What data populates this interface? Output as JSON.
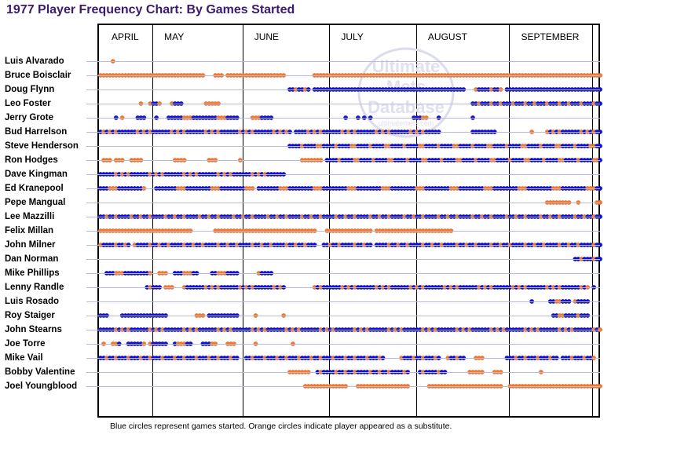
{
  "title": "1977 Player Frequency Chart: By Games Started",
  "footnote": "Blue circles represent games started. Orange circles indicate player appeared as a substitute.",
  "watermark": {
    "line1": "Ultimate",
    "line2": "Mets",
    "line3": "Database",
    "url": "ultimatemets.com"
  },
  "colors": {
    "started": "#1010d8",
    "substitute": "#f07830",
    "title": "#3b1a6e",
    "rowline": "#b8bcd8"
  },
  "chart_data": {
    "type": "scatter",
    "title": "1977 Player Frequency Chart: By Games Started",
    "x_unit": "game number in season (1-162)",
    "months": [
      {
        "label": "APRIL",
        "start_game": 1
      },
      {
        "label": "MAY",
        "start_game": 18
      },
      {
        "label": "JUNE",
        "start_game": 47
      },
      {
        "label": "JULY",
        "start_game": 75
      },
      {
        "label": "AUGUST",
        "start_game": 103
      },
      {
        "label": "SEPTEMBER",
        "start_game": 133
      }
    ],
    "legend": {
      "started": "Blue circles represent games started",
      "substitute": "Orange circles indicate player appeared as a substitute"
    },
    "players": [
      {
        "name": "Luis Alvarado",
        "segments": [
          [
            5,
            5,
            "O"
          ]
        ]
      },
      {
        "name": "Bruce Boisclair",
        "segments": [
          [
            1,
            34,
            "M"
          ],
          [
            38,
            40,
            "M"
          ],
          [
            42,
            60,
            "M"
          ],
          [
            70,
            162,
            "M"
          ]
        ]
      },
      {
        "name": "Doug Flynn",
        "segments": [
          [
            62,
            68,
            "M"
          ],
          [
            70,
            118,
            "B"
          ],
          [
            122,
            130,
            "M"
          ],
          [
            132,
            162,
            "B"
          ]
        ]
      },
      {
        "name": "Leo Foster",
        "segments": [
          [
            14,
            14,
            "O"
          ],
          [
            17,
            20,
            "M"
          ],
          [
            24,
            27,
            "M"
          ],
          [
            35,
            39,
            "O"
          ],
          [
            121,
            162,
            "M"
          ]
        ]
      },
      {
        "name": "Jerry Grote",
        "segments": [
          [
            6,
            6,
            "B"
          ],
          [
            8,
            8,
            "O"
          ],
          [
            13,
            15,
            "M"
          ],
          [
            19,
            19,
            "B"
          ],
          [
            23,
            45,
            "M"
          ],
          [
            50,
            56,
            "M"
          ],
          [
            80,
            80,
            "B"
          ],
          [
            84,
            84,
            "B"
          ],
          [
            86,
            86,
            "B"
          ],
          [
            88,
            88,
            "B"
          ],
          [
            102,
            106,
            "M"
          ],
          [
            110,
            110,
            "B"
          ],
          [
            121,
            121,
            "B"
          ]
        ]
      },
      {
        "name": "Bud Harrelson",
        "segments": [
          [
            1,
            62,
            "M"
          ],
          [
            64,
            110,
            "M"
          ],
          [
            121,
            128,
            "B"
          ],
          [
            140,
            140,
            "O"
          ],
          [
            145,
            162,
            "M"
          ]
        ]
      },
      {
        "name": "Steve Henderson",
        "segments": [
          [
            62,
            162,
            "M"
          ]
        ]
      },
      {
        "name": "Ron Hodges",
        "segments": [
          [
            2,
            4,
            "O"
          ],
          [
            6,
            8,
            "O"
          ],
          [
            11,
            14,
            "O"
          ],
          [
            25,
            28,
            "O"
          ],
          [
            36,
            38,
            "O"
          ],
          [
            46,
            46,
            "O"
          ],
          [
            66,
            72,
            "O"
          ],
          [
            74,
            162,
            "M"
          ]
        ]
      },
      {
        "name": "Dave Kingman",
        "segments": [
          [
            1,
            60,
            "M"
          ]
        ]
      },
      {
        "name": "Ed Kranepool",
        "segments": [
          [
            1,
            15,
            "M"
          ],
          [
            19,
            50,
            "M"
          ],
          [
            52,
            162,
            "M"
          ]
        ]
      },
      {
        "name": "Pepe Mangual",
        "segments": [
          [
            145,
            152,
            "O"
          ],
          [
            155,
            155,
            "O"
          ],
          [
            161,
            162,
            "O"
          ]
        ]
      },
      {
        "name": "Lee Mazzilli",
        "segments": [
          [
            1,
            162,
            "M"
          ]
        ]
      },
      {
        "name": "Felix Millan",
        "segments": [
          [
            1,
            17,
            "M"
          ],
          [
            18,
            30,
            "M"
          ],
          [
            38,
            70,
            "M"
          ],
          [
            74,
            88,
            "M"
          ],
          [
            90,
            114,
            "M"
          ]
        ]
      },
      {
        "name": "John Milner",
        "segments": [
          [
            1,
            10,
            "M"
          ],
          [
            12,
            70,
            "M"
          ],
          [
            73,
            88,
            "M"
          ],
          [
            90,
            162,
            "M"
          ]
        ]
      },
      {
        "name": "Dan Norman",
        "segments": [
          [
            154,
            162,
            "M"
          ]
        ]
      },
      {
        "name": "Mike Phillips",
        "segments": [
          [
            3,
            17,
            "M"
          ],
          [
            20,
            22,
            "O"
          ],
          [
            25,
            32,
            "M"
          ],
          [
            37,
            45,
            "M"
          ],
          [
            52,
            56,
            "M"
          ]
        ]
      },
      {
        "name": "Lenny Randle",
        "segments": [
          [
            16,
            20,
            "M"
          ],
          [
            22,
            24,
            "O"
          ],
          [
            28,
            60,
            "M"
          ],
          [
            70,
            158,
            "M"
          ],
          [
            160,
            160,
            "B"
          ]
        ]
      },
      {
        "name": "Luis Rosado",
        "segments": [
          [
            140,
            140,
            "B"
          ],
          [
            146,
            152,
            "M"
          ],
          [
            154,
            158,
            "M"
          ]
        ]
      },
      {
        "name": "Roy Staiger",
        "segments": [
          [
            1,
            3,
            "B"
          ],
          [
            8,
            22,
            "B"
          ],
          [
            32,
            34,
            "O"
          ],
          [
            36,
            45,
            "B"
          ],
          [
            51,
            51,
            "O"
          ],
          [
            60,
            60,
            "O"
          ],
          [
            147,
            158,
            "M"
          ]
        ]
      },
      {
        "name": "John Stearns",
        "segments": [
          [
            1,
            162,
            "M"
          ]
        ]
      },
      {
        "name": "Joe Torre",
        "segments": [
          [
            2,
            2,
            "O"
          ],
          [
            5,
            7,
            "M"
          ],
          [
            10,
            15,
            "M"
          ],
          [
            17,
            22,
            "M"
          ],
          [
            25,
            30,
            "M"
          ],
          [
            34,
            38,
            "M"
          ],
          [
            42,
            44,
            "O"
          ],
          [
            51,
            51,
            "O"
          ],
          [
            63,
            63,
            "O"
          ]
        ]
      },
      {
        "name": "Mike Vail",
        "segments": [
          [
            1,
            45,
            "M"
          ],
          [
            48,
            92,
            "M"
          ],
          [
            98,
            110,
            "M"
          ],
          [
            113,
            118,
            "M"
          ],
          [
            122,
            124,
            "O"
          ],
          [
            132,
            148,
            "M"
          ],
          [
            150,
            160,
            "M"
          ]
        ]
      },
      {
        "name": "Bobby Valentine",
        "segments": [
          [
            62,
            68,
            "O"
          ],
          [
            71,
            100,
            "M"
          ],
          [
            104,
            112,
            "M"
          ],
          [
            120,
            124,
            "O"
          ],
          [
            128,
            130,
            "O"
          ],
          [
            143,
            143,
            "O"
          ]
        ]
      },
      {
        "name": "Joel Youngblood",
        "segments": [
          [
            67,
            80,
            "M"
          ],
          [
            84,
            100,
            "M"
          ],
          [
            107,
            130,
            "M"
          ],
          [
            133,
            162,
            "M"
          ]
        ]
      }
    ]
  }
}
